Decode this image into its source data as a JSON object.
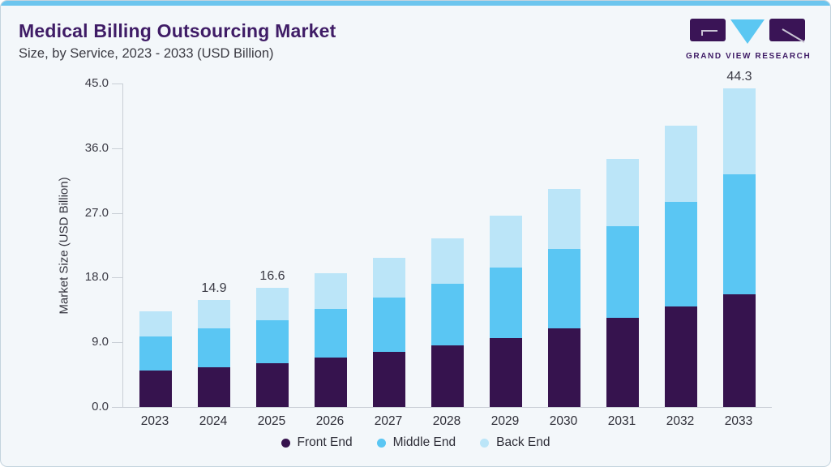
{
  "header": {
    "title": "Medical Billing Outsourcing Market",
    "subtitle": "Size, by Service, 2023 - 2033 (USD Billion)",
    "logo_text": "GRAND VIEW RESEARCH"
  },
  "colors": {
    "accent_strip": "#6cc5ee",
    "brand_purple": "#3f1c66",
    "front_end": "#36134e",
    "middle_end": "#5ac6f3",
    "back_end": "#bbe5f8",
    "background": "#f3f7fa",
    "axis_line": "#c9cfd6"
  },
  "chart_data": {
    "type": "bar",
    "stacked": true,
    "title": "Medical Billing Outsourcing Market Size, by Service, 2023 - 2033 (USD Billion)",
    "categories": [
      "2023",
      "2024",
      "2025",
      "2026",
      "2027",
      "2028",
      "2029",
      "2030",
      "2031",
      "2032",
      "2033"
    ],
    "series": [
      {
        "name": "Front End",
        "color": "#36134e",
        "values": [
          5.1,
          5.5,
          6.1,
          6.9,
          7.7,
          8.6,
          9.6,
          10.9,
          12.4,
          14.0,
          15.7
        ]
      },
      {
        "name": "Middle End",
        "color": "#5ac6f3",
        "values": [
          4.7,
          5.4,
          6.0,
          6.7,
          7.5,
          8.5,
          9.8,
          11.1,
          12.7,
          14.5,
          16.7
        ]
      },
      {
        "name": "Back End",
        "color": "#bbe5f8",
        "values": [
          3.5,
          4.0,
          4.5,
          5.0,
          5.6,
          6.4,
          7.2,
          8.3,
          9.4,
          10.6,
          11.9
        ]
      }
    ],
    "totals": [
      13.3,
      14.9,
      16.6,
      18.6,
      20.8,
      23.5,
      26.6,
      30.3,
      34.5,
      39.1,
      44.3
    ],
    "bar_labels": [
      "",
      "14.9",
      "16.6",
      "",
      "",
      "",
      "",
      "",
      "",
      "",
      "44.3"
    ],
    "ylabel": "Market Size (USD Billion)",
    "yticks": [
      "0.0",
      "9.0",
      "18.0",
      "27.0",
      "36.0",
      "45.0"
    ],
    "ylim": [
      0,
      45
    ],
    "grid": false,
    "legend_position": "bottom"
  }
}
